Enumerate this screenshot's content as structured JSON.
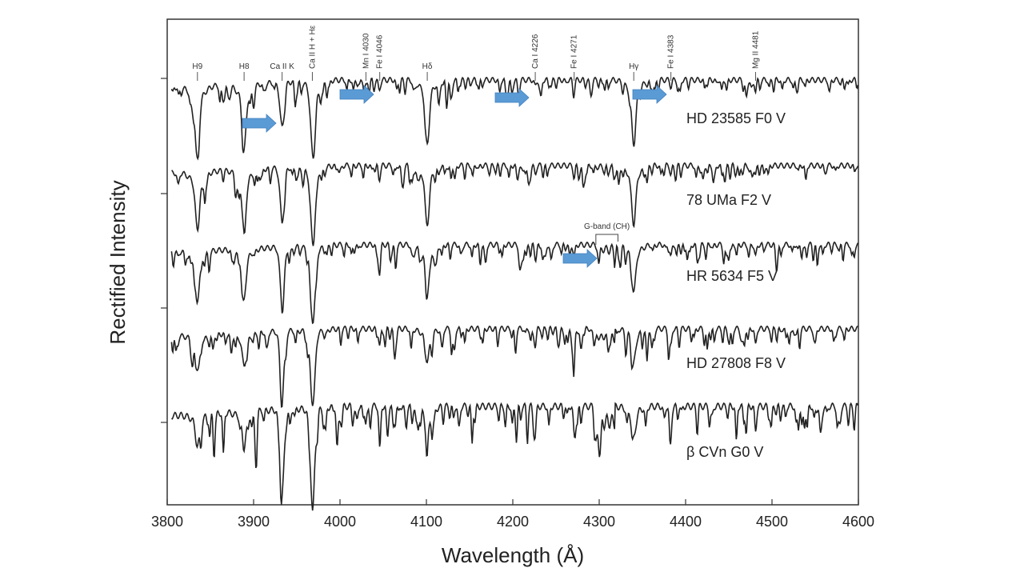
{
  "chart_data": {
    "type": "line",
    "title": "",
    "xlabel": "Wavelength (Å)",
    "ylabel": "Rectified Intensity",
    "xlim": [
      3800,
      4600
    ],
    "x_ticks": [
      3800,
      3900,
      4000,
      4100,
      4200,
      4300,
      4400,
      4500,
      4600
    ],
    "x_tick_labels": [
      "3800",
      "3900",
      "4000",
      "4100",
      "4200",
      "4300",
      "4400",
      "4500",
      "4600"
    ],
    "grid": false,
    "spectral_lines": [
      {
        "label": "H9",
        "wavelength": 3835
      },
      {
        "label": "H8",
        "wavelength": 3889
      },
      {
        "label": "Ca II K",
        "wavelength": 3933
      },
      {
        "label": "Ca II H + Hε",
        "wavelength": 3968
      },
      {
        "label": "Mn I 4030",
        "wavelength": 4030
      },
      {
        "label": "Fe I 4046",
        "wavelength": 4046
      },
      {
        "label": "Hδ",
        "wavelength": 4101
      },
      {
        "label": "Ca I 4226",
        "wavelength": 4226
      },
      {
        "label": "Fe I 4271",
        "wavelength": 4271
      },
      {
        "label": "Hγ",
        "wavelength": 4340
      },
      {
        "label": "Fe I 4383",
        "wavelength": 4383
      },
      {
        "label": "Mg II 4481",
        "wavelength": 4481
      }
    ],
    "series": [
      {
        "name": "HD 23585   F0 V",
        "balmer_depth": 0.9,
        "metal_depth": 0.3,
        "gband": 0.0
      },
      {
        "name": "78 UMa   F2 V",
        "balmer_depth": 0.82,
        "metal_depth": 0.4,
        "gband": 0.1
      },
      {
        "name": "HR 5634   F5 V",
        "balmer_depth": 0.65,
        "metal_depth": 0.55,
        "gband": 0.35
      },
      {
        "name": "HD 27808   F8 V",
        "balmer_depth": 0.45,
        "metal_depth": 0.75,
        "gband": 0.6
      },
      {
        "name": "β CVn    G0 V",
        "balmer_depth": 0.35,
        "metal_depth": 0.9,
        "gband": 0.9
      }
    ],
    "annotations": [
      {
        "label": "G-band (CH)",
        "x_range": [
          4298,
          4318
        ]
      }
    ],
    "arrows": [
      {
        "series": 0,
        "wavelength": 3933
      },
      {
        "series": 0,
        "wavelength": 4040
      },
      {
        "series": 0,
        "wavelength": 4212
      },
      {
        "series": 0,
        "wavelength": 4378
      },
      {
        "series": 2,
        "wavelength": 4298
      }
    ],
    "colors": {
      "line": "#222222",
      "arrow": "#5b9bd5",
      "frame": "#333333"
    }
  }
}
